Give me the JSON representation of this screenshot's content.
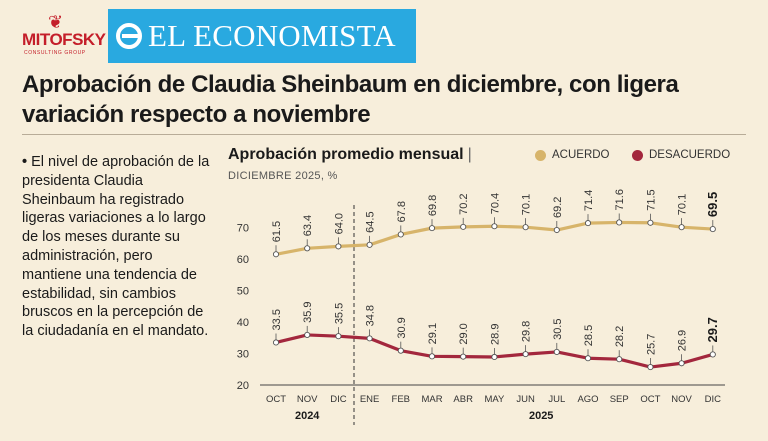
{
  "logos": {
    "mitofsky": "MITOFSKY",
    "mitofsky_tag": "CONSULTING GROUP",
    "economista": "EL ECONOMISTA"
  },
  "headline": "Aprobación de Claudia Sheinbaum en diciembre, con ligera variación respecto a noviembre",
  "bullet_text": "El nivel de aprobación de la presidenta Claudia Sheinbaum ha registrado ligeras variaciones a lo largo de los meses durante su administración, pero mantiene una tendencia de estabilidad, sin cambios bruscos en la percepción de la ciudadanía en el mandato.",
  "colors": {
    "acuerdo": "#d7b46a",
    "desacuerdo": "#a3273d",
    "background": "#f7eedb"
  },
  "chart_data": {
    "type": "line",
    "title": "Aprobación promedio mensual",
    "subtitle": "DICIEMBRE 2025, %",
    "categories": [
      "OCT",
      "NOV",
      "DIC",
      "ENE",
      "FEB",
      "MAR",
      "ABR",
      "MAY",
      "JUN",
      "JUL",
      "AGO",
      "SEP",
      "OCT",
      "NOV",
      "DIC"
    ],
    "year_labels": [
      {
        "label": "2024",
        "from": 0,
        "to": 2
      },
      {
        "label": "2025",
        "from": 3,
        "to": 14
      }
    ],
    "series": [
      {
        "name": "ACUERDO",
        "values": [
          61.5,
          63.4,
          64.0,
          64.5,
          67.8,
          69.8,
          70.2,
          70.4,
          70.1,
          69.2,
          71.4,
          71.6,
          71.5,
          70.1,
          69.5
        ]
      },
      {
        "name": "DESACUERDO",
        "values": [
          33.5,
          35.9,
          35.5,
          34.8,
          30.9,
          29.1,
          29.0,
          28.9,
          29.8,
          30.5,
          28.5,
          28.2,
          25.7,
          26.9,
          29.7
        ]
      }
    ],
    "y_ticks": [
      20,
      30,
      40,
      50,
      60,
      70
    ],
    "ylim": [
      20,
      80
    ],
    "legend_position": "top-right",
    "grid": false
  }
}
